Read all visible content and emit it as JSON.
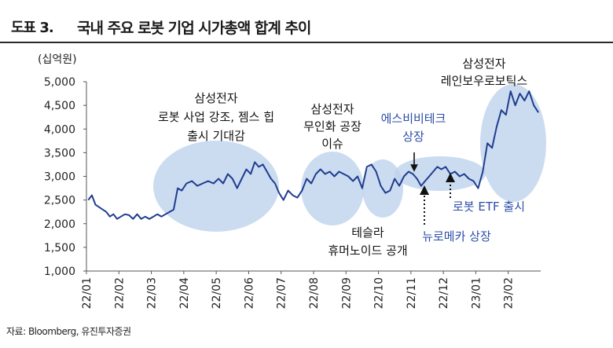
{
  "figure_label": "도표 3.",
  "title": "국내 주요 로봇 기업 시가총액 합계 추이",
  "source": "자료: Bloomberg, 유진투자증권",
  "chart_data": {
    "type": "line",
    "unit_label": "(십억원)",
    "ylim": [
      1000,
      5000
    ],
    "yticks": [
      1000,
      1500,
      2000,
      2500,
      3000,
      3500,
      4000,
      4500,
      5000
    ],
    "ytick_labels": [
      "1,000",
      "1,500",
      "2,000",
      "2,500",
      "3,000",
      "3,500",
      "4,000",
      "4,500",
      "5,000"
    ],
    "xticks": [
      "22/01",
      "22/02",
      "22/03",
      "22/04",
      "22/05",
      "22/06",
      "22/07",
      "22/08",
      "22/09",
      "22/10",
      "22/11",
      "22/12",
      "23/01",
      "23/02"
    ],
    "grid": false,
    "legend": "none",
    "line_color": "#1f3d8f",
    "ellipse_color": "#bcd2ec",
    "highlight_text_color": "#2c4ea8",
    "series": [
      {
        "values": [
          [
            "22/01",
            2500
          ],
          [
            "22/01",
            2600
          ],
          [
            "22/01",
            2400
          ],
          [
            "22/01",
            2350
          ],
          [
            "22/01",
            2300
          ],
          [
            "22/01",
            2250
          ],
          [
            "22/01",
            2150
          ],
          [
            "22/01",
            2200
          ],
          [
            "22/01",
            2100
          ],
          [
            "22/02",
            2150
          ],
          [
            "22/02",
            2200
          ],
          [
            "22/02",
            2180
          ],
          [
            "22/02",
            2100
          ],
          [
            "22/02",
            2200
          ],
          [
            "22/02",
            2100
          ],
          [
            "22/02",
            2150
          ],
          [
            "22/02",
            2100
          ],
          [
            "22/03",
            2150
          ],
          [
            "22/03",
            2200
          ],
          [
            "22/03",
            2150
          ],
          [
            "22/03",
            2200
          ],
          [
            "22/03",
            2250
          ],
          [
            "22/03",
            2300
          ],
          [
            "22/03",
            2750
          ],
          [
            "22/03",
            2700
          ],
          [
            "22/04",
            2850
          ],
          [
            "22/04",
            2900
          ],
          [
            "22/04",
            2800
          ],
          [
            "22/04",
            2850
          ],
          [
            "22/04",
            2900
          ],
          [
            "22/04",
            2850
          ],
          [
            "22/05",
            2950
          ],
          [
            "22/05",
            2850
          ],
          [
            "22/05",
            3050
          ],
          [
            "22/05",
            2950
          ],
          [
            "22/05",
            2750
          ],
          [
            "22/05",
            2950
          ],
          [
            "22/05",
            3150
          ],
          [
            "22/06",
            3050
          ],
          [
            "22/06",
            3300
          ],
          [
            "22/06",
            3200
          ],
          [
            "22/06",
            3250
          ],
          [
            "22/06",
            3100
          ],
          [
            "22/06",
            2950
          ],
          [
            "22/06",
            2850
          ],
          [
            "22/06",
            2650
          ],
          [
            "22/07",
            2500
          ],
          [
            "22/07",
            2700
          ],
          [
            "22/07",
            2600
          ],
          [
            "22/07",
            2550
          ],
          [
            "22/07",
            2700
          ],
          [
            "22/07",
            2950
          ],
          [
            "22/07",
            2850
          ],
          [
            "22/08",
            3050
          ],
          [
            "22/08",
            3150
          ],
          [
            "22/08",
            3050
          ],
          [
            "22/08",
            3100
          ],
          [
            "22/08",
            3000
          ],
          [
            "22/08",
            3100
          ],
          [
            "22/08",
            3050
          ],
          [
            "22/09",
            3000
          ],
          [
            "22/09",
            2900
          ],
          [
            "22/09",
            3000
          ],
          [
            "22/09",
            2750
          ],
          [
            "22/09",
            3200
          ],
          [
            "22/09",
            3250
          ],
          [
            "22/09",
            3100
          ],
          [
            "22/10",
            2800
          ],
          [
            "22/10",
            2650
          ],
          [
            "22/10",
            2700
          ],
          [
            "22/10",
            2950
          ],
          [
            "22/10",
            2800
          ],
          [
            "22/10",
            3000
          ],
          [
            "22/10",
            3100
          ],
          [
            "22/11",
            3050
          ],
          [
            "22/11",
            2950
          ],
          [
            "22/11",
            2800
          ],
          [
            "22/11",
            2900
          ],
          [
            "22/11",
            3000
          ],
          [
            "22/11",
            3100
          ],
          [
            "22/11",
            3200
          ],
          [
            "22/11",
            3150
          ],
          [
            "22/12",
            3200
          ],
          [
            "22/12",
            3050
          ],
          [
            "22/12",
            3100
          ],
          [
            "22/12",
            3000
          ],
          [
            "22/12",
            3050
          ],
          [
            "22/12",
            2950
          ],
          [
            "22/12",
            2900
          ],
          [
            "23/01",
            2750
          ],
          [
            "23/01",
            3100
          ],
          [
            "23/01",
            3700
          ],
          [
            "23/01",
            3600
          ],
          [
            "23/01",
            4050
          ],
          [
            "23/01",
            4400
          ],
          [
            "23/01",
            4300
          ],
          [
            "23/02",
            4800
          ],
          [
            "23/02",
            4500
          ],
          [
            "23/02",
            4750
          ],
          [
            "23/02",
            4600
          ],
          [
            "23/02",
            4800
          ],
          [
            "23/02",
            4500
          ],
          [
            "23/02",
            4350
          ]
        ]
      }
    ],
    "annotations": [
      {
        "lines": [
          "삼성전자",
          "로봇 사업 강조, 젬스 힙",
          "출시 기대감"
        ],
        "highlight": false
      },
      {
        "lines": [
          "삼성전자",
          "무인화 공장",
          "이슈"
        ],
        "highlight": false
      },
      {
        "lines": [
          "테슬라",
          "휴머노이드 공개"
        ],
        "highlight": false
      },
      {
        "lines": [
          "에스비비테크",
          "상장"
        ],
        "highlight": true
      },
      {
        "lines": [
          "로봇 ETF 출시"
        ],
        "highlight": true
      },
      {
        "lines": [
          "뉴로메카 상장"
        ],
        "highlight": true
      },
      {
        "lines": [
          "삼성전자",
          "레인보우로보틱스"
        ],
        "highlight": false
      }
    ]
  }
}
